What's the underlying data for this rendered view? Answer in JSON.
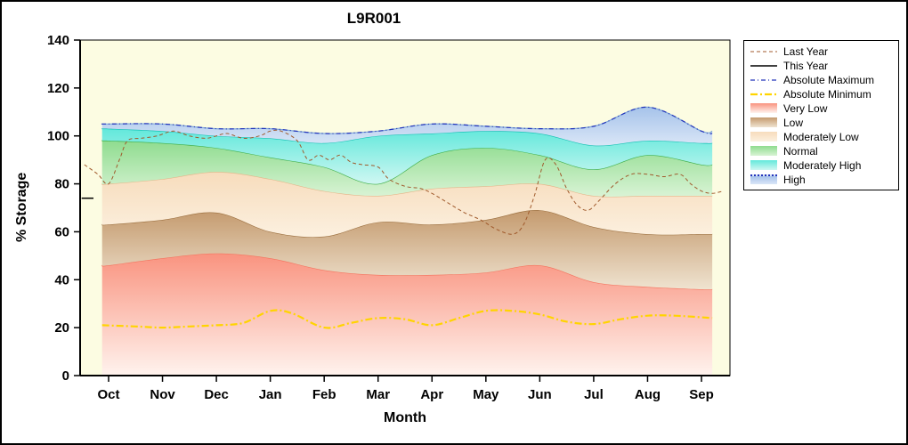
{
  "title": "L9R001",
  "chart_data": {
    "type": "area",
    "title": "L9R001",
    "xlabel": "Month",
    "ylabel": "% Storage",
    "ylim": [
      0,
      140
    ],
    "y_tick_step": 20,
    "x_start": -0.12,
    "x_end": 11.2,
    "plot_background": "#FCFCE2",
    "legend_position": "right",
    "categories": [
      "Oct",
      "Nov",
      "Dec",
      "Jan",
      "Feb",
      "Mar",
      "Apr",
      "May",
      "Jun",
      "Jul",
      "Aug",
      "Sep"
    ],
    "bands": [
      {
        "name": "Very Low",
        "edge": "#F4735E",
        "fill_top": "#F9937F",
        "fill_bottom": "#FFF3EE",
        "values": [
          46,
          49,
          51,
          49,
          44,
          42,
          42,
          43,
          46,
          39,
          37,
          36
        ]
      },
      {
        "name": "Low",
        "edge": "#9C7040",
        "fill_top": "#C49A6E",
        "fill_bottom": "#EFE3D0",
        "values": [
          63,
          65,
          68,
          60,
          58,
          64,
          63,
          65,
          69,
          62,
          59,
          59
        ]
      },
      {
        "name": "Moderately Low",
        "edge": "#E5B488",
        "fill_top": "#F7DCBC",
        "fill_bottom": "#FCF0DF",
        "values": [
          80,
          82,
          85,
          82,
          77,
          75,
          78,
          79,
          80,
          75,
          75,
          75
        ]
      },
      {
        "name": "Normal",
        "edge": "#3FAE49",
        "fill_top": "#8FDC8F",
        "fill_bottom": "#D8F3D4",
        "values": [
          98,
          97,
          95,
          91,
          87,
          80,
          92,
          95,
          92,
          86,
          92,
          88
        ]
      },
      {
        "name": "Moderately High",
        "edge": "#14C2B4",
        "fill_top": "#62E8DB",
        "fill_bottom": "#CFF7F2",
        "values": [
          103,
          102,
          100,
          99,
          97,
          100,
          101,
          102,
          101,
          96,
          98,
          97
        ]
      },
      {
        "name": "High",
        "edge": "#7FA8D8",
        "fill_top": "#A6C3EA",
        "fill_bottom": "#DAE6F7",
        "values": [
          105,
          105,
          103,
          103,
          101,
          102,
          105,
          104,
          103,
          104,
          112,
          102
        ]
      }
    ],
    "lines": [
      {
        "name": "Absolute Minimum",
        "color": "#FFD400",
        "width": 2.2,
        "dash": "8 3 2 3",
        "points": [
          [
            -0.12,
            21
          ],
          [
            0.5,
            20.5
          ],
          [
            1,
            20
          ],
          [
            1.5,
            20.5
          ],
          [
            2,
            21
          ],
          [
            2.5,
            22
          ],
          [
            3,
            27
          ],
          [
            3.4,
            26
          ],
          [
            4,
            20
          ],
          [
            4.5,
            22
          ],
          [
            5,
            24
          ],
          [
            5.5,
            23.5
          ],
          [
            6,
            21
          ],
          [
            6.5,
            24
          ],
          [
            7,
            27
          ],
          [
            7.5,
            27
          ],
          [
            8,
            25.5
          ],
          [
            8.5,
            22.5
          ],
          [
            9,
            21.5
          ],
          [
            9.5,
            23.5
          ],
          [
            10,
            25
          ],
          [
            10.5,
            25
          ],
          [
            11.2,
            24
          ]
        ]
      },
      {
        "name": "Last Year",
        "color": "#A05A2C",
        "width": 1,
        "dash": "4 3",
        "points": [
          [
            -0.45,
            88
          ],
          [
            -0.2,
            84
          ],
          [
            0,
            80
          ],
          [
            0.2,
            90
          ],
          [
            0.35,
            98
          ],
          [
            0.6,
            99
          ],
          [
            0.9,
            100
          ],
          [
            1.2,
            102
          ],
          [
            1.5,
            100
          ],
          [
            1.8,
            99
          ],
          [
            2,
            100
          ],
          [
            2.2,
            101
          ],
          [
            2.5,
            99
          ],
          [
            2.8,
            100
          ],
          [
            3,
            102
          ],
          [
            3.2,
            102
          ],
          [
            3.5,
            98
          ],
          [
            3.7,
            90
          ],
          [
            3.9,
            92
          ],
          [
            4.1,
            90
          ],
          [
            4.3,
            92
          ],
          [
            4.5,
            89
          ],
          [
            4.7,
            88
          ],
          [
            5,
            87
          ],
          [
            5.2,
            82
          ],
          [
            5.5,
            79
          ],
          [
            5.8,
            78
          ],
          [
            6,
            76
          ],
          [
            6.3,
            72
          ],
          [
            6.6,
            68
          ],
          [
            6.9,
            65
          ],
          [
            7.2,
            61
          ],
          [
            7.5,
            59
          ],
          [
            7.7,
            63
          ],
          [
            7.9,
            75
          ],
          [
            8.1,
            90
          ],
          [
            8.3,
            88
          ],
          [
            8.5,
            78
          ],
          [
            8.7,
            71
          ],
          [
            8.9,
            69
          ],
          [
            9.1,
            73
          ],
          [
            9.4,
            80
          ],
          [
            9.7,
            84
          ],
          [
            10,
            84
          ],
          [
            10.3,
            83
          ],
          [
            10.6,
            84
          ],
          [
            10.8,
            80
          ],
          [
            11,
            77
          ],
          [
            11.2,
            76
          ],
          [
            11.4,
            77
          ]
        ]
      },
      {
        "name": "Absolute Maximum",
        "color": "#2233BB",
        "width": 1.2,
        "dash": "5 3 1 3",
        "points": [
          [
            -0.12,
            105
          ],
          [
            0,
            105
          ],
          [
            1,
            105
          ],
          [
            2,
            103
          ],
          [
            3,
            103
          ],
          [
            4,
            101
          ],
          [
            5,
            102
          ],
          [
            6,
            105
          ],
          [
            7,
            104
          ],
          [
            8,
            103
          ],
          [
            9,
            104
          ],
          [
            10,
            112
          ],
          [
            11,
            102
          ],
          [
            11.2,
            101
          ]
        ]
      },
      {
        "name": "This Year",
        "color": "#000000",
        "width": 1.5,
        "dash": "",
        "points": [
          [
            -0.5,
            74
          ],
          [
            -0.28,
            74
          ]
        ]
      }
    ]
  },
  "legend": {
    "items": [
      {
        "label": "Last Year",
        "type": "line",
        "color": "#A05A2C",
        "dash": "4 3",
        "width": 1
      },
      {
        "label": "This Year",
        "type": "line",
        "color": "#000000",
        "dash": "",
        "width": 1.5
      },
      {
        "label": "Absolute Maximum",
        "type": "line",
        "color": "#2233BB",
        "dash": "5 3 1 3",
        "width": 1.2
      },
      {
        "label": "Absolute Minimum",
        "type": "line",
        "color": "#FFD400",
        "dash": "8 3 2 3",
        "width": 2.2
      },
      {
        "label": "Very Low",
        "type": "band",
        "top": "#F9937F",
        "bottom": "#FFF3EE"
      },
      {
        "label": "Low",
        "type": "band",
        "top": "#C49A6E",
        "bottom": "#EFE3D0"
      },
      {
        "label": "Moderately Low",
        "type": "band",
        "top": "#F7DCBC",
        "bottom": "#FCF0DF"
      },
      {
        "label": "Normal",
        "type": "band",
        "top": "#8FDC8F",
        "bottom": "#D8F3D4"
      },
      {
        "label": "Moderately High",
        "type": "band",
        "top": "#62E8DB",
        "bottom": "#CFF7F2"
      },
      {
        "label": "High",
        "type": "band",
        "top": "#A6C3EA",
        "bottom": "#DAE6F7",
        "edge": "#2233BB"
      }
    ]
  }
}
